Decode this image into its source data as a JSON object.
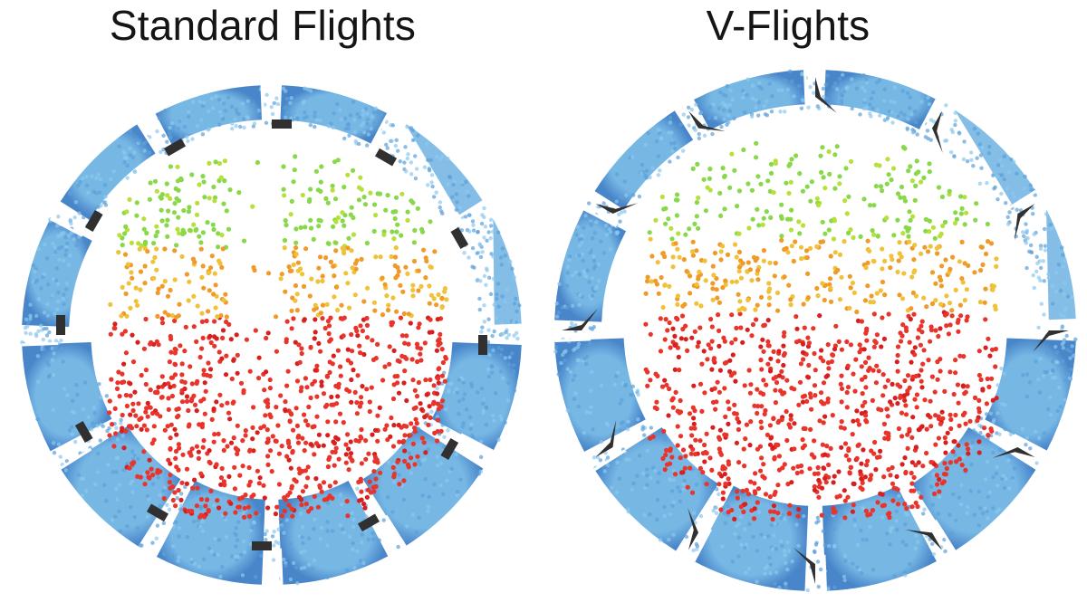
{
  "panels": [
    {
      "id": "standard",
      "title": "Standard Flights",
      "flight_shape": "L-shaped",
      "flight_count": 12,
      "particle_colors": {
        "bed": "#6fb3e3",
        "bed_dark": "#3e7fc6",
        "rising": "#88d84a",
        "falling_mid": "#f0c23a",
        "falling_fast": "#e8342a",
        "flight": "#303030"
      }
    },
    {
      "id": "v-flights",
      "title": "V-Flights",
      "flight_shape": "V-shaped",
      "flight_count": 12,
      "particle_colors": {
        "bed": "#6fb3e3",
        "bed_dark": "#3e7fc6",
        "rising": "#88d84a",
        "falling_mid": "#f0c23a",
        "falling_fast": "#e8342a",
        "flight": "#303030"
      }
    }
  ]
}
